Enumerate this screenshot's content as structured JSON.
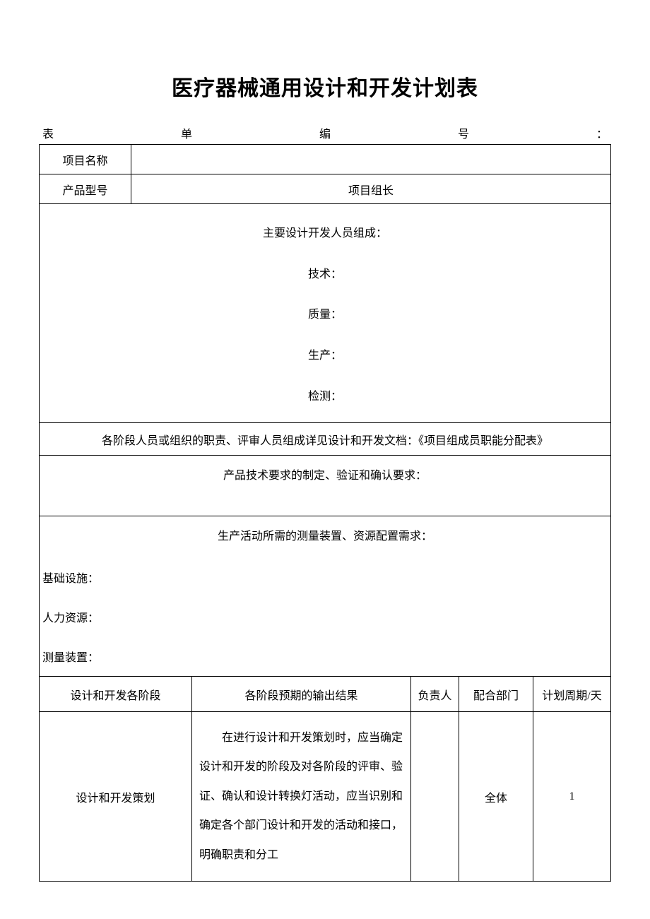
{
  "title": "医疗器械通用设计和开发计划表",
  "form_number": {
    "c1": "表",
    "c2": "单",
    "c3": "编",
    "c4": "号",
    "c5": "："
  },
  "header": {
    "project_name_label": "项目名称",
    "project_name_value": "",
    "product_model_label": "产品型号",
    "product_model_value": "",
    "project_leader_label": "项目组长",
    "project_leader_value": ""
  },
  "team": {
    "title": "主要设计开发人员组成：",
    "tech": "技术：",
    "quality": "质量：",
    "production": "生产：",
    "inspection": "检测："
  },
  "notes": {
    "stage_note": "各阶段人员或组织的职责、评审人员组成详见设计和开发文档：《项目组成员职能分配表》",
    "tech_req": "产品技术要求的制定、验证和确认要求：",
    "resource_title": "生产活动所需的测量装置、资源配置需求：",
    "infra": "基础设施：",
    "hr": "人力资源：",
    "measure": "测量装置："
  },
  "columns": {
    "stage": "设计和开发各阶段",
    "output": "各阶段预期的输出结果",
    "owner": "负责人",
    "dept": "配合部门",
    "period": "计划周期/天"
  },
  "rows": [
    {
      "stage": "设计和开发策划",
      "output": "在进行设计和开发策划时，应当确定设计和开发的阶段及对各阶段的评审、验证、确认和设计转换灯活动，应当识别和确定各个部门设计和开发的活动和接口，明确职责和分工",
      "owner": "",
      "dept": "全体",
      "period": "1"
    }
  ],
  "style": {
    "bg": "#ffffff",
    "text": "#000000",
    "border": "#000000",
    "title_fontsize": 30,
    "body_fontsize": 16
  }
}
